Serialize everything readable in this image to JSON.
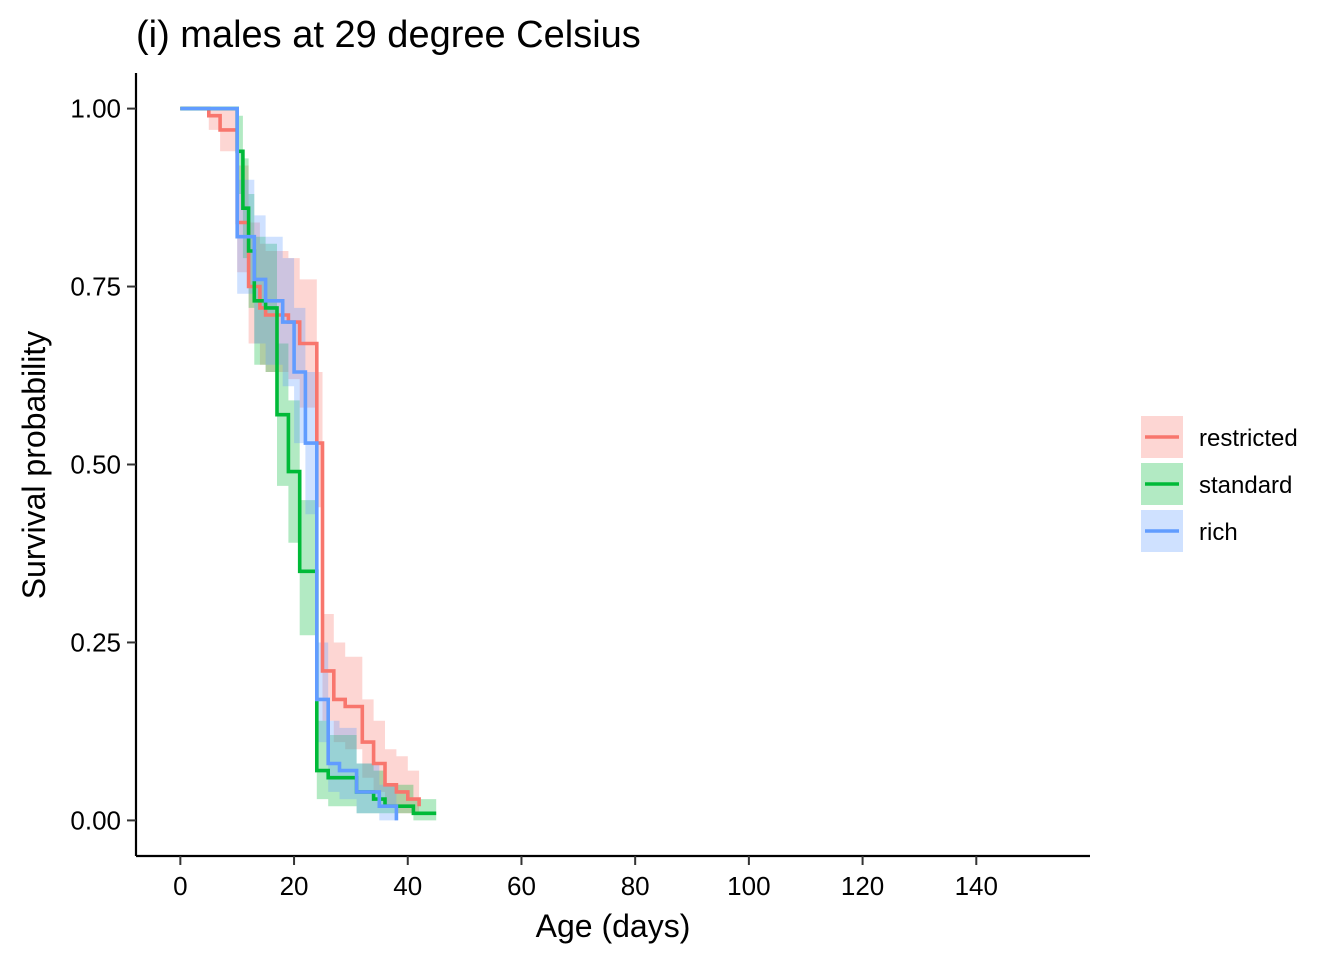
{
  "chart_data": {
    "type": "line",
    "title": "(i) males at 29 degree Celsius",
    "xlabel": "Age (days)",
    "ylabel": "Survival probability",
    "xlim": [
      -7.8,
      160
    ],
    "ylim": [
      -0.05,
      1.05
    ],
    "x_ticks": [
      0,
      20,
      40,
      60,
      80,
      100,
      120,
      140
    ],
    "x_tick_labels": [
      "0",
      "20",
      "40",
      "60",
      "80",
      "100",
      "120",
      "140"
    ],
    "y_ticks": [
      0,
      0.25,
      0.5,
      0.75,
      1.0
    ],
    "y_tick_labels": [
      "0.00",
      "0.25",
      "0.50",
      "0.75",
      "1.00"
    ],
    "legend_position": "right",
    "grid": false,
    "series": [
      {
        "name": "restricted",
        "color": "#F8766D",
        "x": [
          0,
          5,
          7,
          10,
          11,
          12,
          14,
          15,
          17,
          19,
          21,
          24,
          25,
          27,
          29,
          32,
          34,
          36,
          38,
          40,
          42
        ],
        "y": [
          1.0,
          0.99,
          0.97,
          0.84,
          0.84,
          0.75,
          0.72,
          0.71,
          0.71,
          0.7,
          0.67,
          0.53,
          0.21,
          0.17,
          0.16,
          0.11,
          0.08,
          0.05,
          0.04,
          0.03,
          0.02
        ],
        "lower": [
          1.0,
          0.97,
          0.94,
          0.77,
          0.77,
          0.67,
          0.64,
          0.63,
          0.63,
          0.62,
          0.58,
          0.44,
          0.14,
          0.11,
          0.1,
          0.06,
          0.04,
          0.02,
          0.01,
          0.01,
          0.01
        ],
        "upper": [
          1.0,
          1.0,
          1.0,
          0.92,
          0.92,
          0.84,
          0.81,
          0.8,
          0.8,
          0.79,
          0.76,
          0.63,
          0.29,
          0.25,
          0.23,
          0.17,
          0.14,
          0.1,
          0.09,
          0.07,
          0.06
        ]
      },
      {
        "name": "standard",
        "color": "#00BA38",
        "x": [
          0,
          10,
          11,
          12,
          13,
          15,
          17,
          19,
          21,
          24,
          26,
          28,
          31,
          34,
          36,
          39,
          41,
          43,
          45
        ],
        "y": [
          1.0,
          0.94,
          0.86,
          0.8,
          0.73,
          0.72,
          0.57,
          0.49,
          0.35,
          0.07,
          0.06,
          0.06,
          0.04,
          0.03,
          0.02,
          0.02,
          0.01,
          0.01,
          0.01
        ],
        "lower": [
          1.0,
          0.88,
          0.79,
          0.72,
          0.64,
          0.63,
          0.47,
          0.39,
          0.26,
          0.03,
          0.02,
          0.02,
          0.01,
          0.01,
          0.01,
          0.01,
          0.0,
          0.0,
          0.0
        ],
        "upper": [
          1.0,
          0.99,
          0.93,
          0.88,
          0.82,
          0.81,
          0.67,
          0.59,
          0.45,
          0.14,
          0.12,
          0.12,
          0.08,
          0.07,
          0.05,
          0.05,
          0.03,
          0.03,
          0.03
        ]
      },
      {
        "name": "rich",
        "color": "#619CFF",
        "x": [
          0,
          10,
          11,
          13,
          15,
          18,
          20,
          22,
          24,
          26,
          28,
          31,
          35,
          38
        ],
        "y": [
          1.0,
          0.82,
          0.82,
          0.76,
          0.73,
          0.7,
          0.63,
          0.53,
          0.17,
          0.08,
          0.07,
          0.04,
          0.02,
          0.0
        ],
        "lower": [
          1.0,
          0.74,
          0.74,
          0.67,
          0.64,
          0.61,
          0.53,
          0.43,
          0.11,
          0.04,
          0.03,
          0.01,
          0.0,
          0.0
        ],
        "upper": [
          1.0,
          0.9,
          0.9,
          0.85,
          0.82,
          0.79,
          0.72,
          0.63,
          0.25,
          0.14,
          0.13,
          0.08,
          0.05,
          0.03
        ]
      }
    ]
  }
}
